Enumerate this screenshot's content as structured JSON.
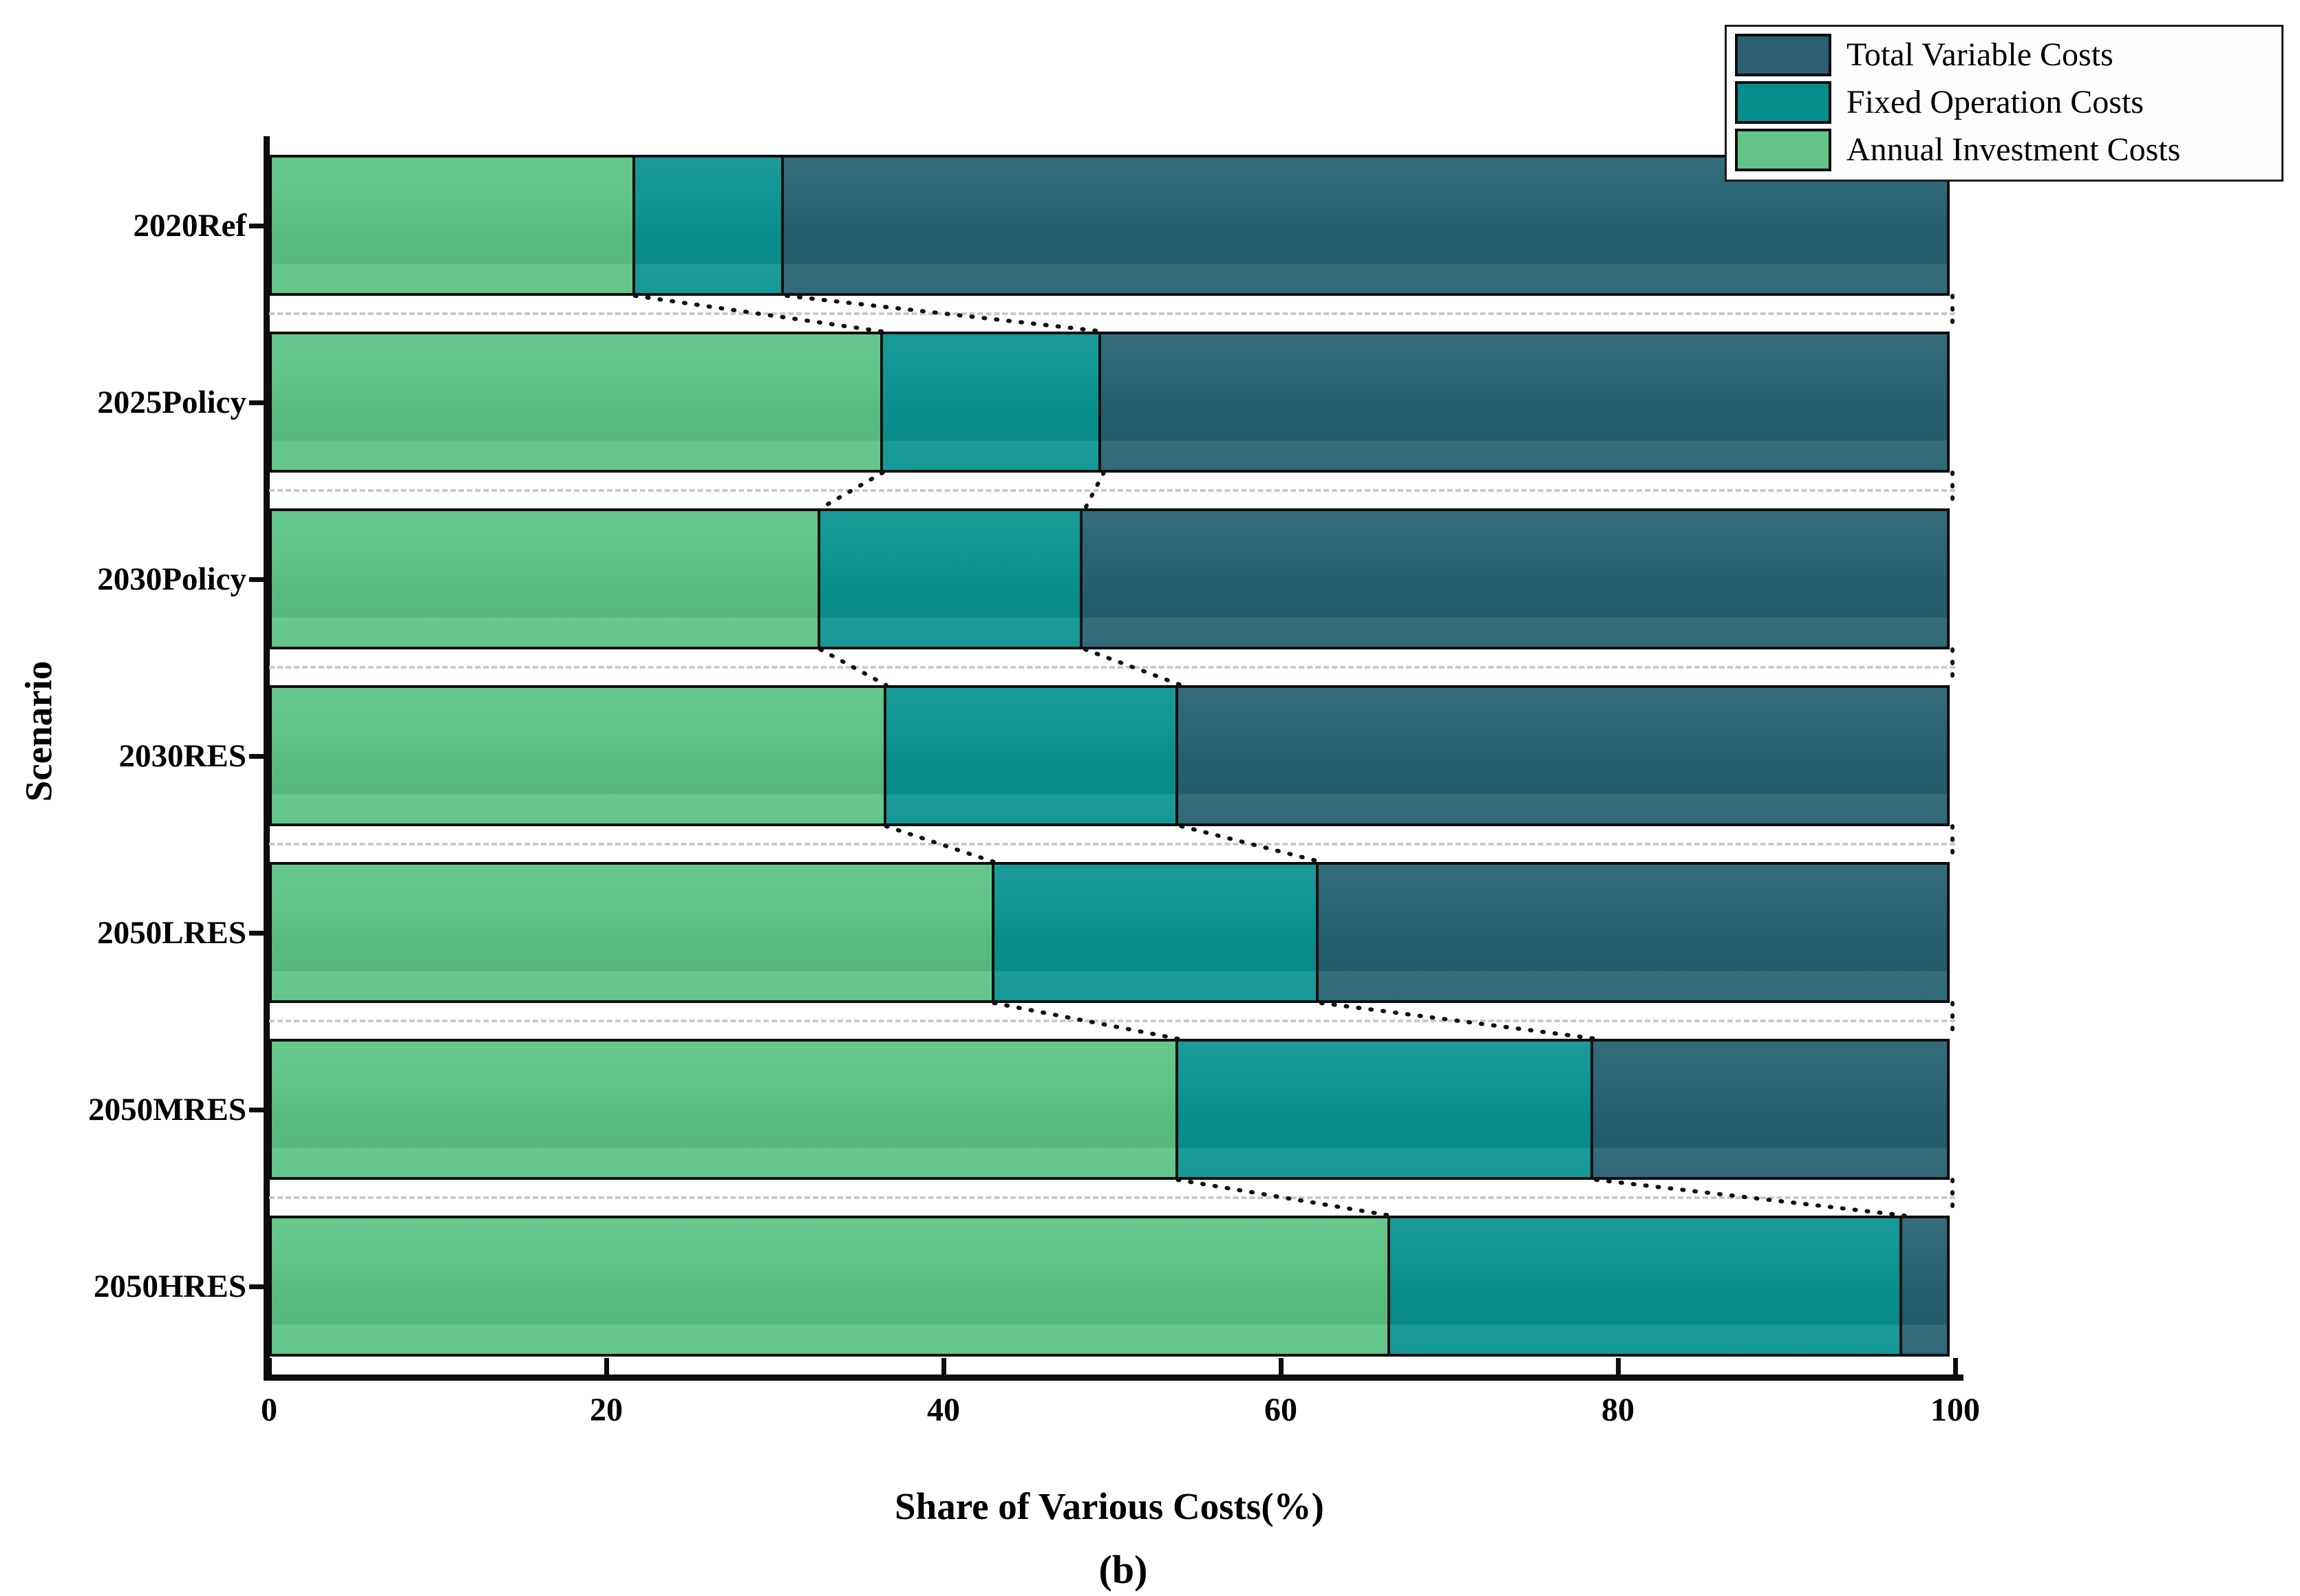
{
  "figure": {
    "caption": "(b)"
  },
  "axes": {
    "x_title": "Share of Various Costs(%)",
    "y_title": "Scenario",
    "x_ticks": [
      0,
      20,
      40,
      60,
      80,
      100
    ]
  },
  "legend": {
    "entries": [
      {
        "label": "Total Variable Costs",
        "color": "#2c5f72"
      },
      {
        "label": "Fixed Operation Costs",
        "color": "#058f8c"
      },
      {
        "label": "Annual Investment Costs",
        "color": "#63c386"
      }
    ]
  },
  "chart_data": {
    "type": "bar",
    "orientation": "horizontal",
    "stacked": true,
    "title": "",
    "xlabel": "Share of Various Costs(%)",
    "ylabel": "Scenario",
    "xlim": [
      0,
      100
    ],
    "grid": "light dashed horizontal lines between bars",
    "legend_position": "upper right",
    "annotations": "black dotted connector lines link segment boundaries of adjacent bars",
    "categories": [
      "2020Ref",
      "2025Policy",
      "2030Policy",
      "2030RES",
      "2050LRES",
      "2050MRES",
      "2050HRES"
    ],
    "series": [
      {
        "name": "Annual Investment Costs",
        "color": "#5bc283",
        "values": [
          21.7,
          36.4,
          32.7,
          36.6,
          43.0,
          53.9,
          66.5
        ]
      },
      {
        "name": "Fixed Operation Costs",
        "color": "#089390",
        "values": [
          9.0,
          13.1,
          15.7,
          17.5,
          19.4,
          24.8,
          30.5
        ]
      },
      {
        "name": "Total Variable Costs",
        "color": "#256172",
        "values": [
          69.3,
          50.5,
          51.6,
          45.9,
          37.6,
          21.3,
          3.0
        ]
      }
    ]
  }
}
